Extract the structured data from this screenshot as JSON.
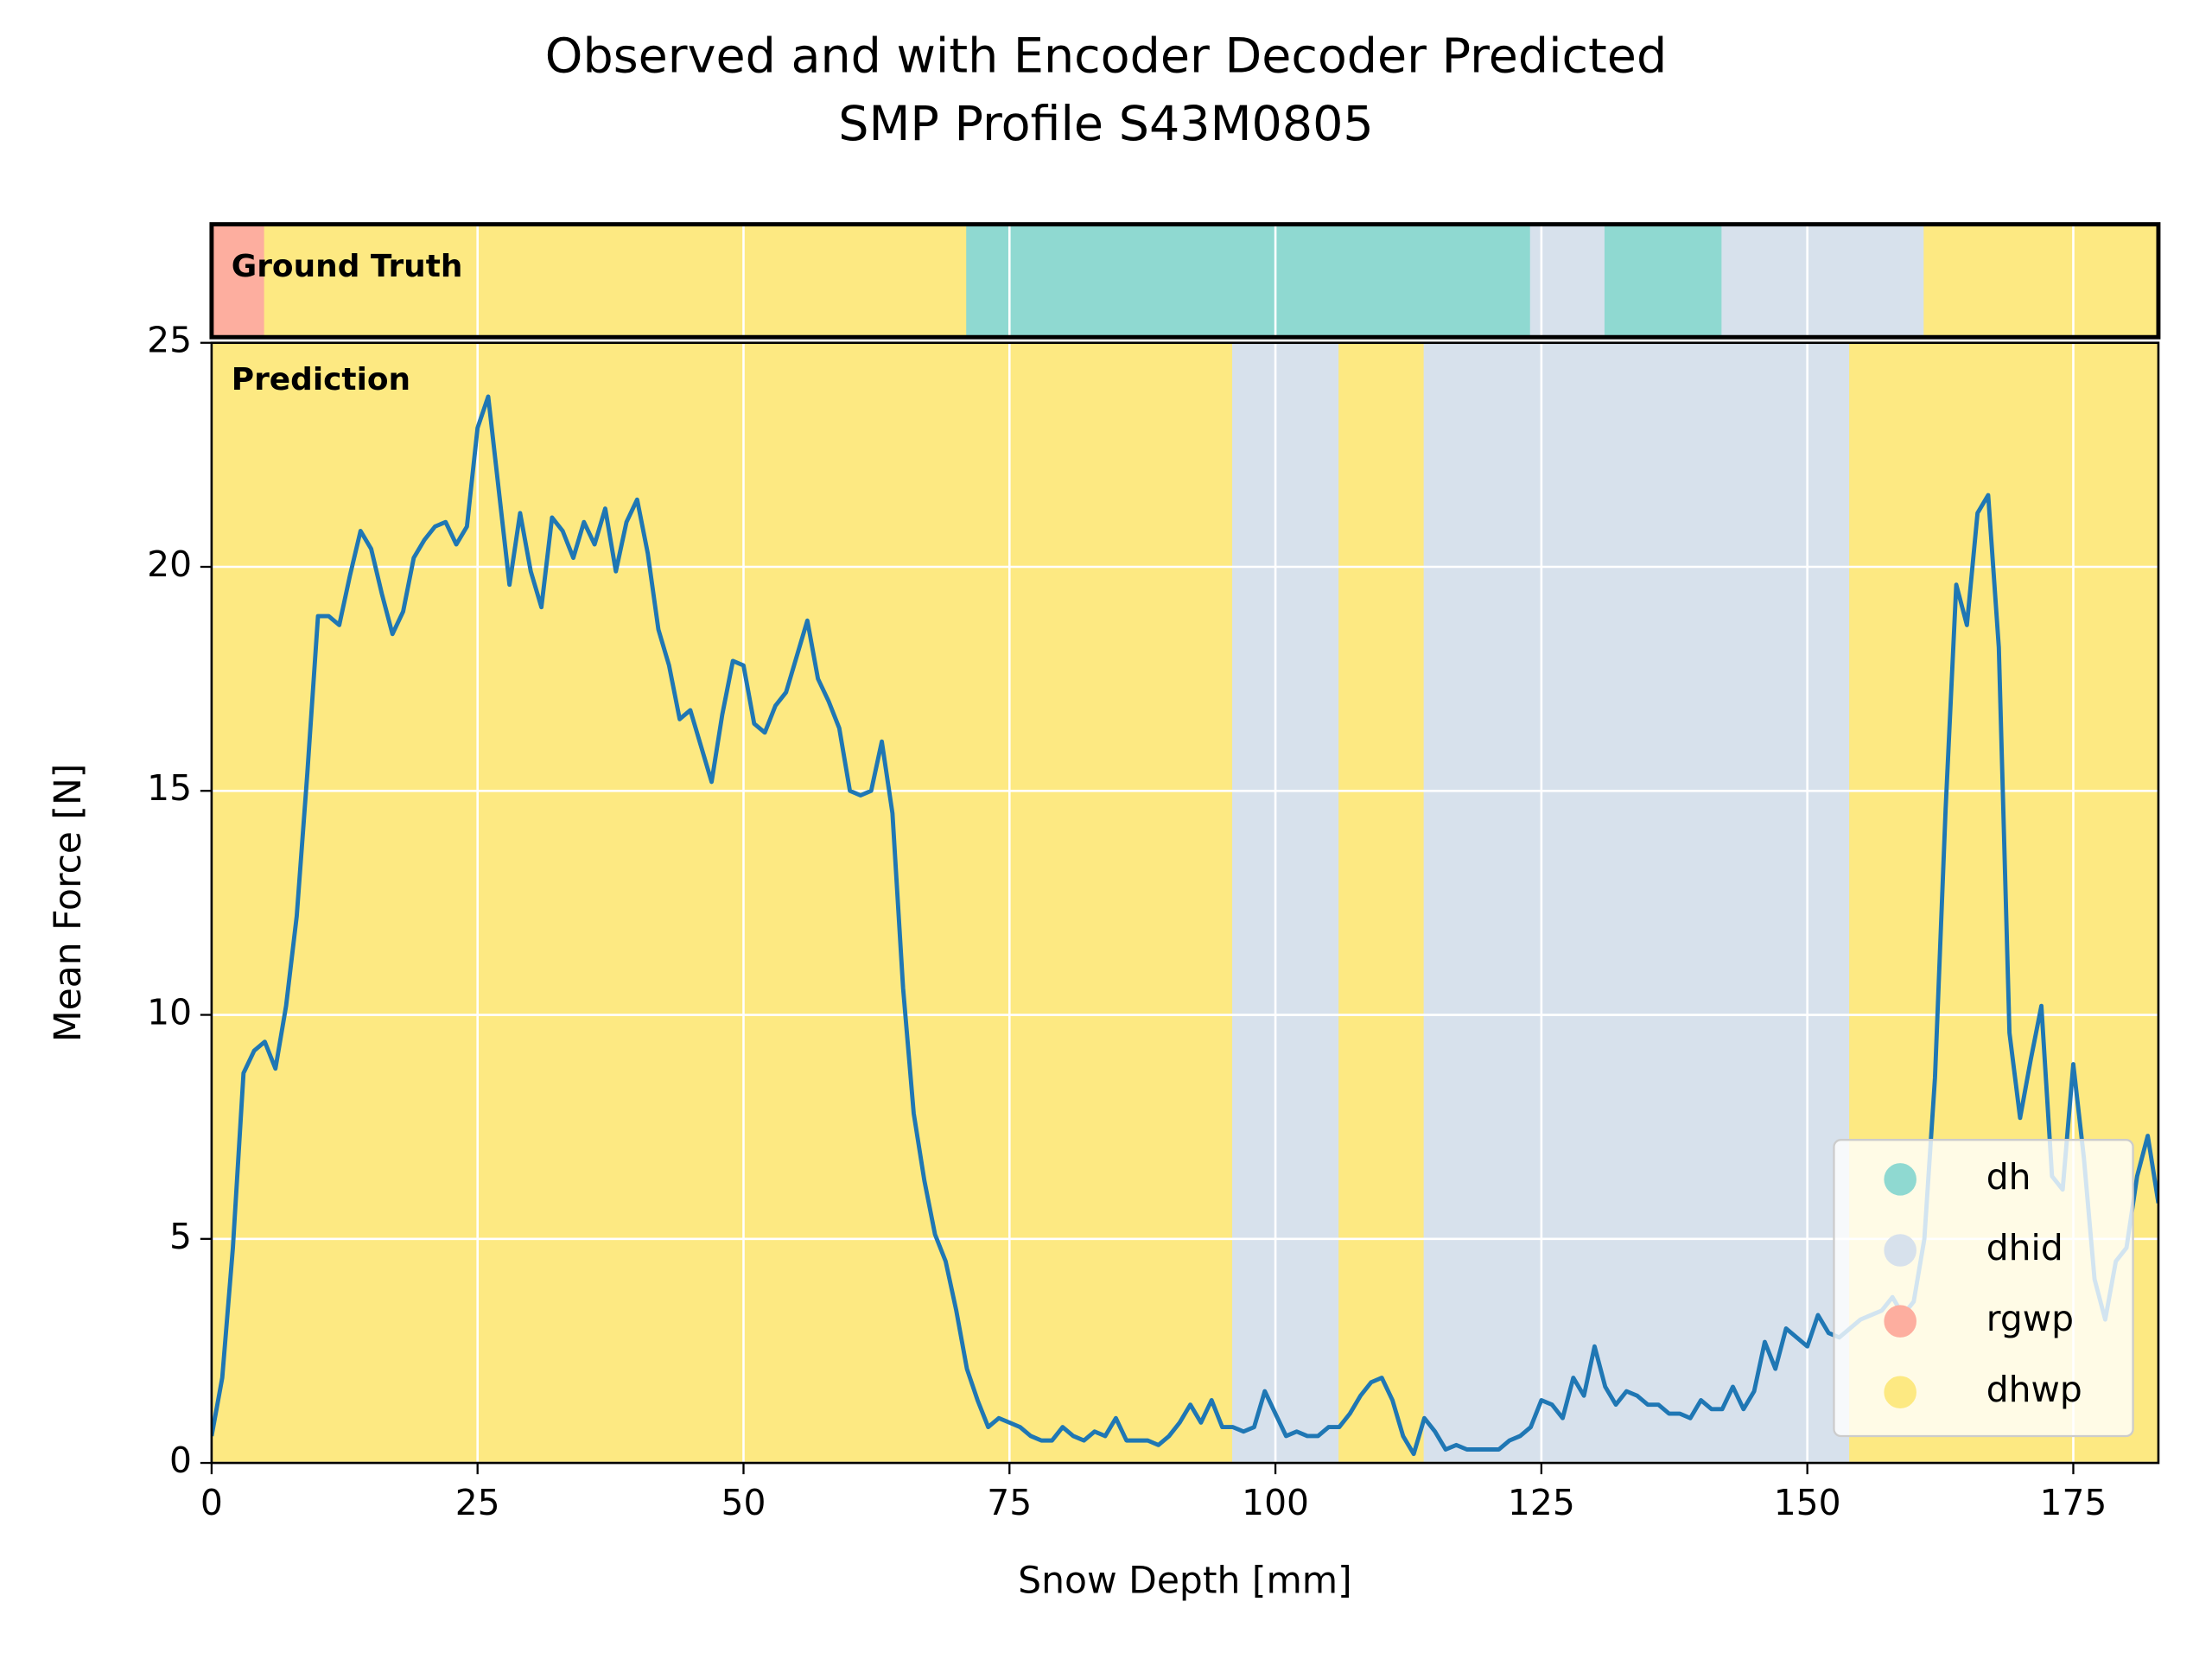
{
  "chart_data": {
    "type": "line",
    "title": [
      "Observed and with Encoder Decoder Predicted",
      "SMP Profile S43M0805"
    ],
    "x_label": "Snow Depth [mm]",
    "y_label": "Mean Force [N]",
    "ground_truth_label": "Ground Truth",
    "prediction_label": "Prediction",
    "xlim": [
      0,
      183
    ],
    "ylim": [
      0,
      25
    ],
    "xticks": [
      0,
      25,
      50,
      75,
      100,
      125,
      150,
      175
    ],
    "yticks": [
      0,
      5,
      10,
      15,
      20,
      25
    ],
    "grid": true,
    "legend_position": "lower right",
    "classes": [
      {
        "name": "dh",
        "color": "#8fd9d1"
      },
      {
        "name": "dhid",
        "color": "#d7e1ec"
      },
      {
        "name": "rgwp",
        "color": "#fdae9f"
      },
      {
        "name": "dhwp",
        "color": "#fde982"
      }
    ],
    "ground_truth": [
      {
        "class": "rgwp",
        "start": 0,
        "end": 5
      },
      {
        "class": "dhwp",
        "start": 5,
        "end": 71
      },
      {
        "class": "dh",
        "start": 71,
        "end": 124
      },
      {
        "class": "dhid",
        "start": 124,
        "end": 131
      },
      {
        "class": "dh",
        "start": 131,
        "end": 142
      },
      {
        "class": "dhid",
        "start": 142,
        "end": 161
      },
      {
        "class": "dhwp",
        "start": 161,
        "end": 183
      }
    ],
    "prediction": [
      {
        "class": "dhwp",
        "start": 0,
        "end": 96
      },
      {
        "class": "dhid",
        "start": 96,
        "end": 106
      },
      {
        "class": "dhwp",
        "start": 106,
        "end": 114
      },
      {
        "class": "dhid",
        "start": 114,
        "end": 154
      },
      {
        "class": "dhwp",
        "start": 154,
        "end": 183
      }
    ],
    "series": [
      {
        "color": "#1f77b4",
        "x": [
          0,
          1,
          2,
          3,
          4,
          5,
          6,
          7,
          8,
          9,
          10,
          11,
          12,
          13,
          14,
          15,
          16,
          17,
          18,
          19,
          20,
          21,
          22,
          23,
          24,
          25,
          26,
          27,
          28,
          29,
          30,
          31,
          32,
          33,
          34,
          35,
          36,
          37,
          38,
          39,
          40,
          41,
          42,
          43,
          44,
          45,
          46,
          47,
          48,
          49,
          50,
          51,
          52,
          53,
          54,
          55,
          56,
          57,
          58,
          59,
          60,
          61,
          62,
          63,
          64,
          65,
          66,
          67,
          68,
          69,
          70,
          71,
          72,
          73,
          74,
          75,
          76,
          77,
          78,
          79,
          80,
          81,
          82,
          83,
          84,
          85,
          86,
          87,
          88,
          89,
          90,
          91,
          92,
          93,
          94,
          95,
          96,
          97,
          98,
          99,
          100,
          101,
          102,
          103,
          104,
          105,
          106,
          107,
          108,
          109,
          110,
          111,
          112,
          113,
          114,
          115,
          116,
          117,
          118,
          119,
          120,
          121,
          122,
          123,
          124,
          125,
          126,
          127,
          128,
          129,
          130,
          131,
          132,
          133,
          134,
          135,
          136,
          137,
          138,
          139,
          140,
          141,
          142,
          143,
          144,
          145,
          146,
          147,
          148,
          149,
          150,
          151,
          152,
          153,
          154,
          155,
          156,
          157,
          158,
          159,
          160,
          161,
          162,
          163,
          164,
          165,
          166,
          167,
          168,
          169,
          170,
          171,
          172,
          173,
          174,
          175,
          176,
          177,
          178,
          179,
          180,
          181,
          182,
          183
        ],
        "values": [
          0.6,
          1.9,
          4.8,
          8.7,
          9.2,
          9.4,
          8.8,
          10.2,
          12.2,
          15.4,
          18.9,
          18.9,
          18.7,
          19.8,
          20.8,
          20.4,
          19.4,
          18.5,
          19.0,
          20.2,
          20.6,
          20.9,
          21.0,
          20.5,
          20.9,
          23.1,
          23.8,
          21.7,
          19.6,
          21.2,
          19.9,
          19.1,
          21.1,
          20.8,
          20.2,
          21.0,
          20.5,
          21.3,
          19.9,
          21.0,
          21.5,
          20.3,
          18.6,
          17.8,
          16.6,
          16.8,
          16.0,
          15.2,
          16.7,
          17.9,
          17.8,
          16.5,
          16.3,
          16.9,
          17.2,
          18.0,
          18.8,
          17.5,
          17.0,
          16.4,
          15.0,
          14.9,
          15.0,
          16.1,
          14.5,
          10.6,
          7.8,
          6.3,
          5.1,
          4.5,
          3.4,
          2.1,
          1.4,
          0.8,
          1.0,
          0.9,
          0.8,
          0.6,
          0.5,
          0.5,
          0.8,
          0.6,
          0.5,
          0.7,
          0.6,
          1.0,
          0.5,
          0.5,
          0.5,
          0.4,
          0.6,
          0.9,
          1.3,
          0.9,
          1.4,
          0.8,
          0.8,
          0.7,
          0.8,
          1.6,
          1.1,
          0.6,
          0.7,
          0.6,
          0.6,
          0.8,
          0.8,
          1.1,
          1.5,
          1.8,
          1.9,
          1.4,
          0.6,
          0.2,
          1.0,
          0.7,
          0.3,
          0.4,
          0.3,
          0.3,
          0.3,
          0.3,
          0.5,
          0.6,
          0.8,
          1.4,
          1.3,
          1.0,
          1.9,
          1.5,
          2.6,
          1.7,
          1.3,
          1.6,
          1.5,
          1.3,
          1.3,
          1.1,
          1.1,
          1.0,
          1.4,
          1.2,
          1.2,
          1.7,
          1.2,
          1.6,
          2.7,
          2.1,
          3.0,
          2.8,
          2.6,
          3.3,
          2.9,
          2.8,
          3.0,
          3.2,
          3.3,
          3.4,
          3.7,
          3.3,
          3.6,
          5.0,
          8.6,
          14.6,
          19.6,
          18.7,
          21.2,
          21.6,
          18.2,
          9.6,
          7.7,
          9.0,
          10.2,
          6.4,
          6.1,
          8.9,
          6.8,
          4.1,
          3.2,
          4.5,
          4.8,
          6.4,
          7.3,
          5.8
        ]
      }
    ]
  }
}
